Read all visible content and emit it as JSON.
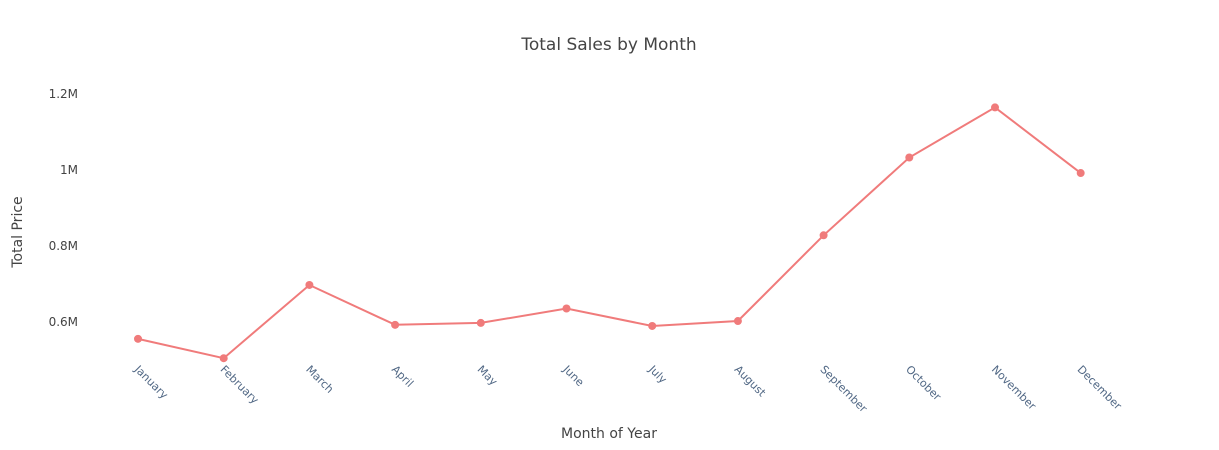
{
  "chart_data": {
    "type": "line",
    "title": "Total Sales by Month",
    "xlabel": "Month of Year",
    "ylabel": "Total Price",
    "categories": [
      "January",
      "February",
      "March",
      "April",
      "May",
      "June",
      "July",
      "August",
      "September",
      "October",
      "November",
      "December"
    ],
    "series": [
      {
        "values": [
          555000,
          504000,
          697000,
          592000,
          597000,
          635000,
          589000,
          602000,
          828000,
          1033000,
          1165000,
          992000
        ]
      }
    ],
    "ylim": [
      465000,
      1290000
    ],
    "yticks": [
      {
        "value": 600000,
        "label": "0.6M"
      },
      {
        "value": 800000,
        "label": "0.8M"
      },
      {
        "value": 1000000,
        "label": "1M"
      },
      {
        "value": 1200000,
        "label": "1.2M"
      }
    ],
    "grid": false,
    "line_color": "#f07b7b"
  }
}
